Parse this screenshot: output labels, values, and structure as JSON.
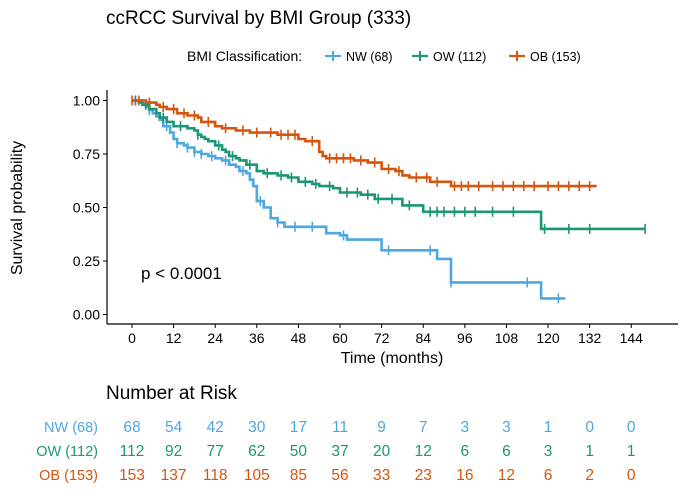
{
  "chart_data": {
    "type": "line",
    "title": "ccRCC Survival by BMI Group (333)",
    "xlabel": "Time (months)",
    "ylabel": "Survival probability",
    "xlim": [
      -5,
      150
    ],
    "ylim": [
      0,
      1
    ],
    "x_ticks": [
      0,
      12,
      24,
      36,
      48,
      60,
      72,
      84,
      96,
      108,
      120,
      132,
      144
    ],
    "y_ticks": [
      0.0,
      0.25,
      0.5,
      0.75,
      1.0
    ],
    "y_tick_labels": [
      "0.00",
      "0.25",
      "0.50",
      "0.75",
      "1.00"
    ],
    "grid": false,
    "legend": {
      "title": "BMI Classification:",
      "position": "top",
      "entries": [
        "NW (68)",
        "OW (112)",
        "OB (153)"
      ]
    },
    "annotation": "p < 0.0001",
    "series": [
      {
        "name": "NW (68)",
        "color": "#4EA7DF",
        "x": [
          0,
          3,
          4,
          5,
          6,
          7,
          8,
          9,
          11,
          12,
          13,
          15,
          16,
          18,
          20,
          22,
          24,
          26,
          28,
          30,
          31,
          33,
          34,
          35,
          36,
          38,
          40,
          42,
          44,
          48,
          56,
          60,
          62,
          66,
          72,
          88,
          92,
          118,
          125
        ],
        "y": [
          1.0,
          0.985,
          0.97,
          0.955,
          0.94,
          0.925,
          0.91,
          0.88,
          0.85,
          0.82,
          0.8,
          0.79,
          0.78,
          0.76,
          0.75,
          0.74,
          0.73,
          0.72,
          0.7,
          0.69,
          0.67,
          0.66,
          0.63,
          0.6,
          0.53,
          0.5,
          0.45,
          0.43,
          0.41,
          0.41,
          0.38,
          0.37,
          0.35,
          0.35,
          0.3,
          0.26,
          0.15,
          0.075,
          0.075
        ],
        "censored_x": [
          1,
          5,
          10,
          13,
          16,
          18,
          20,
          23,
          27,
          32,
          37,
          42,
          47,
          52,
          61,
          74,
          86,
          92,
          114,
          123
        ]
      },
      {
        "name": "OW (112)",
        "color": "#1B9676",
        "x": [
          0,
          2,
          3,
          5,
          7,
          8,
          10,
          12,
          16,
          18,
          19,
          20,
          21,
          22,
          24,
          26,
          27,
          28,
          30,
          31,
          33,
          36,
          38,
          40,
          42,
          45,
          48,
          52,
          54,
          58,
          60,
          66,
          70,
          72,
          78,
          84,
          118,
          148
        ],
        "y": [
          1.0,
          0.99,
          0.98,
          0.96,
          0.94,
          0.92,
          0.9,
          0.88,
          0.87,
          0.86,
          0.84,
          0.83,
          0.82,
          0.81,
          0.79,
          0.77,
          0.76,
          0.74,
          0.73,
          0.72,
          0.7,
          0.67,
          0.66,
          0.66,
          0.65,
          0.64,
          0.62,
          0.61,
          0.6,
          0.59,
          0.57,
          0.56,
          0.54,
          0.54,
          0.51,
          0.48,
          0.4,
          0.4
        ],
        "censored_x": [
          1,
          4,
          9,
          14,
          19,
          25,
          29,
          34,
          39,
          43,
          46,
          50,
          53,
          57,
          62,
          65,
          68,
          71,
          75,
          80,
          86,
          88,
          90,
          93,
          96,
          99,
          104,
          110,
          119,
          126,
          132,
          148
        ]
      },
      {
        "name": "OB (153)",
        "color": "#D4550E",
        "x": [
          0,
          4,
          7,
          8,
          10,
          11,
          13,
          16,
          19,
          20,
          24,
          26,
          30,
          34,
          38,
          42,
          47,
          48,
          50,
          54,
          55,
          56,
          64,
          68,
          72,
          76,
          78,
          80,
          86,
          92,
          134
        ],
        "y": [
          1.0,
          0.99,
          0.98,
          0.97,
          0.96,
          0.96,
          0.94,
          0.93,
          0.92,
          0.9,
          0.88,
          0.87,
          0.86,
          0.85,
          0.85,
          0.84,
          0.84,
          0.82,
          0.81,
          0.76,
          0.74,
          0.73,
          0.72,
          0.71,
          0.68,
          0.67,
          0.65,
          0.64,
          0.62,
          0.6,
          0.6
        ],
        "censored_x": [
          0,
          2,
          5,
          9,
          12,
          15,
          18,
          22,
          27,
          32,
          36,
          40,
          43,
          45,
          47,
          52,
          57,
          59,
          61,
          63,
          66,
          70,
          74,
          77,
          82,
          85,
          88,
          93,
          95,
          97,
          100,
          104,
          107,
          110,
          113,
          116,
          120,
          123,
          126,
          129,
          132
        ]
      }
    ],
    "risk_table": {
      "title": "Number at Risk",
      "time_points": [
        0,
        12,
        24,
        36,
        48,
        60,
        72,
        84,
        96,
        108,
        120,
        132,
        144
      ],
      "rows": [
        {
          "label": "NW (68)",
          "color": "#4EA7DF",
          "values": [
            68,
            54,
            42,
            30,
            17,
            11,
            9,
            7,
            3,
            3,
            1,
            0,
            0
          ]
        },
        {
          "label": "OW (112)",
          "color": "#1B9676",
          "values": [
            112,
            92,
            77,
            62,
            50,
            37,
            20,
            12,
            6,
            6,
            3,
            1,
            1
          ]
        },
        {
          "label": "OB (153)",
          "color": "#D4550E",
          "values": [
            153,
            137,
            118,
            105,
            85,
            56,
            33,
            23,
            16,
            12,
            6,
            2,
            0
          ]
        }
      ]
    }
  }
}
